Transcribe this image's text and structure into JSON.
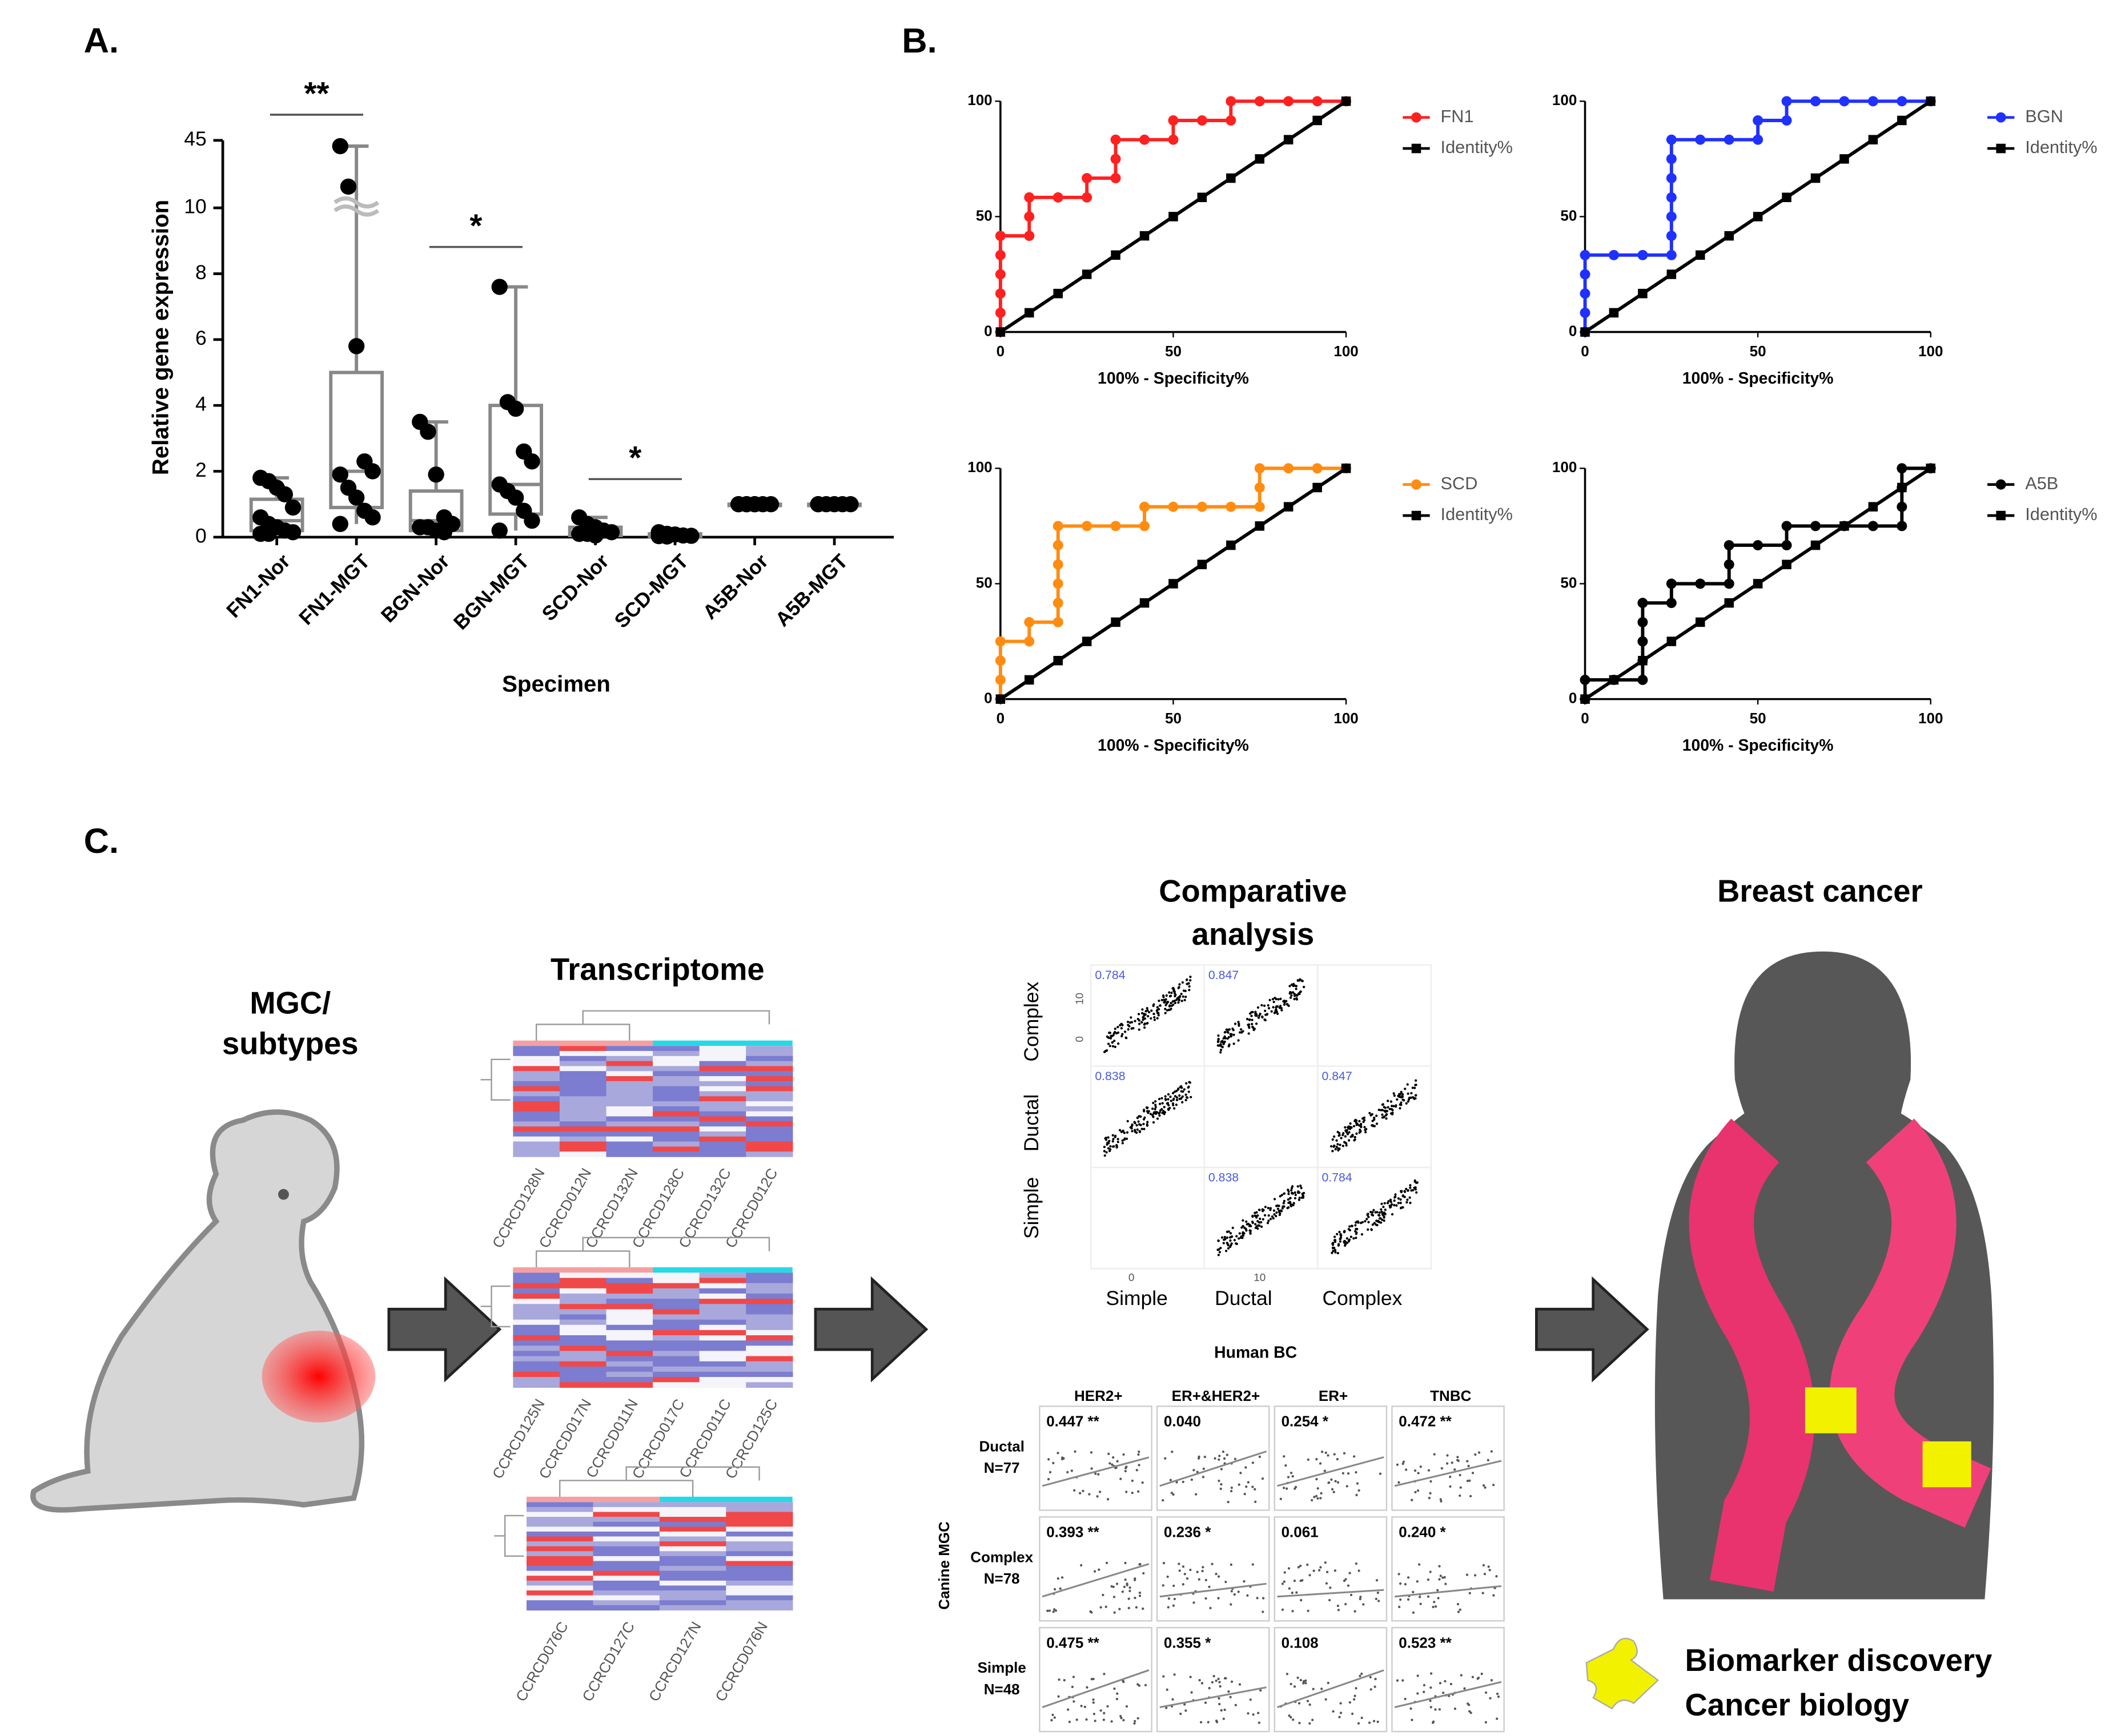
{
  "panel_labels": [
    "A.",
    "B.",
    "C."
  ],
  "chart_data": [
    {
      "type": "box",
      "ylabel": "Relative gene expression",
      "xlabel": "Specimen",
      "categories": [
        "FN1-Nor",
        "FN1-MGT",
        "BGN-Nor",
        "BGN-MGT",
        "SCD-Nor",
        "SCD-MGT",
        "A5B-Nor",
        "A5B-MGT"
      ],
      "ylim": [
        0,
        45
      ],
      "axis_break": 10,
      "yticks": [
        0,
        2,
        4,
        6,
        8,
        10,
        45
      ],
      "color": "#888888",
      "point_color": "#000000",
      "boxes": [
        {
          "min": 0.1,
          "q1": 0.2,
          "median": 0.5,
          "q3": 1.15,
          "max": 1.8,
          "points": [
            1.8,
            1.7,
            1.5,
            1.3,
            0.9,
            0.6,
            0.4,
            0.3,
            0.2,
            0.15,
            0.1,
            0.1
          ]
        },
        {
          "min": 0.4,
          "q1": 0.9,
          "median": 2,
          "q3": 5,
          "max": 42,
          "points": [
            42,
            21,
            5.8,
            2.3,
            2,
            1.9,
            1.5,
            1.2,
            0.8,
            0.6,
            0.4
          ]
        },
        {
          "min": 0.1,
          "q1": 0.2,
          "median": 0.5,
          "q3": 1.4,
          "max": 3.5,
          "points": [
            3.5,
            3.2,
            1.9,
            0.6,
            0.4,
            0.3,
            0.3,
            0.2,
            0.15
          ]
        },
        {
          "min": 0.2,
          "q1": 0.7,
          "median": 1.6,
          "q3": 4,
          "max": 7.6,
          "points": [
            7.6,
            4.1,
            3.9,
            2.6,
            2.3,
            1.6,
            1.4,
            1.2,
            0.8,
            0.5,
            0.2
          ]
        },
        {
          "min": 0.02,
          "q1": 0.05,
          "median": 0.15,
          "q3": 0.3,
          "max": 0.6,
          "points": [
            0.6,
            0.4,
            0.3,
            0.2,
            0.15,
            0.1,
            0.1,
            0.05
          ]
        },
        {
          "min": 0.01,
          "q1": 0.02,
          "median": 0.05,
          "q3": 0.1,
          "max": 0.15,
          "points": [
            0.15,
            0.1,
            0.08,
            0.05,
            0.04,
            0.03,
            0.02
          ]
        },
        {
          "min": 1,
          "q1": 1,
          "median": 1,
          "q3": 1,
          "max": 1,
          "points": [
            1,
            1,
            1,
            1,
            1,
            1,
            1,
            1
          ]
        },
        {
          "min": 1,
          "q1": 1,
          "median": 1,
          "q3": 1,
          "max": 1,
          "points": [
            1,
            1,
            1,
            1,
            1,
            1
          ]
        }
      ],
      "annotations": [
        "**",
        "*",
        "*"
      ]
    },
    {
      "type": "line",
      "xlabel": "100% - Specificity%",
      "xlim": [
        0,
        100
      ],
      "ylim": [
        0,
        100
      ],
      "xticks": [
        0,
        50,
        100
      ],
      "yticks": [
        0,
        50,
        100
      ],
      "series": [
        {
          "name": "FN1",
          "color": "#ff2020",
          "marker": "circle",
          "x": [
            0,
            0,
            0,
            0,
            0,
            0,
            8.33,
            8.33,
            8.33,
            16.67,
            25,
            25,
            33.33,
            33.33,
            33.33,
            41.67,
            50,
            50,
            58.33,
            66.67,
            66.67,
            75,
            83.33,
            91.67,
            100
          ],
          "values": [
            0,
            8.33,
            16.67,
            25,
            33.33,
            41.67,
            41.67,
            50,
            58.33,
            58.33,
            58.33,
            66.67,
            66.67,
            75,
            83.33,
            83.33,
            83.33,
            91.67,
            91.67,
            91.67,
            100,
            100,
            100,
            100,
            100
          ]
        },
        {
          "name": "Identity%",
          "color": "#000000",
          "marker": "square",
          "x": [
            0,
            8.33,
            16.67,
            25,
            33.33,
            41.67,
            50,
            58.33,
            66.67,
            75,
            83.33,
            91.67,
            100
          ],
          "values": [
            0,
            8.33,
            16.67,
            25,
            33.33,
            41.67,
            50,
            58.33,
            66.67,
            75,
            83.33,
            91.67,
            100
          ]
        }
      ]
    },
    {
      "type": "line",
      "xlabel": "100% - Specificity%",
      "xlim": [
        0,
        100
      ],
      "ylim": [
        0,
        100
      ],
      "xticks": [
        0,
        50,
        100
      ],
      "yticks": [
        0,
        50,
        100
      ],
      "series": [
        {
          "name": "BGN",
          "color": "#2030ff",
          "marker": "circle",
          "x": [
            0,
            0,
            0,
            0,
            0,
            8.33,
            16.67,
            25,
            25,
            25,
            25,
            25,
            25,
            25,
            33.33,
            41.67,
            50,
            50,
            58.33,
            58.33,
            66.67,
            75,
            83.33,
            91.67,
            100
          ],
          "values": [
            0,
            8.33,
            16.67,
            25,
            33.33,
            33.33,
            33.33,
            33.33,
            41.67,
            50,
            58.33,
            66.67,
            75,
            83.33,
            83.33,
            83.33,
            83.33,
            91.67,
            91.67,
            100,
            100,
            100,
            100,
            100,
            100
          ]
        },
        {
          "name": "Identity%",
          "color": "#000000",
          "marker": "square",
          "x": [
            0,
            8.33,
            16.67,
            25,
            33.33,
            41.67,
            50,
            58.33,
            66.67,
            75,
            83.33,
            91.67,
            100
          ],
          "values": [
            0,
            8.33,
            16.67,
            25,
            33.33,
            41.67,
            50,
            58.33,
            66.67,
            75,
            83.33,
            91.67,
            100
          ]
        }
      ]
    },
    {
      "type": "line",
      "xlabel": "100% - Specificity%",
      "xlim": [
        0,
        100
      ],
      "ylim": [
        0,
        100
      ],
      "xticks": [
        0,
        50,
        100
      ],
      "yticks": [
        0,
        50,
        100
      ],
      "series": [
        {
          "name": "SCD",
          "color": "#ff8c10",
          "marker": "circle",
          "x": [
            0,
            0,
            0,
            0,
            8.33,
            8.33,
            16.67,
            16.67,
            16.67,
            16.67,
            16.67,
            16.67,
            25,
            33.33,
            41.67,
            41.67,
            50,
            58.33,
            66.67,
            75,
            75,
            75,
            83.33,
            91.67,
            100
          ],
          "values": [
            0,
            8.33,
            16.67,
            25,
            25,
            33.33,
            33.33,
            41.67,
            50,
            58.33,
            66.67,
            75,
            75,
            75,
            75,
            83.33,
            83.33,
            83.33,
            83.33,
            83.33,
            91.67,
            100,
            100,
            100,
            100
          ]
        },
        {
          "name": "Identity%",
          "color": "#000000",
          "marker": "square",
          "x": [
            0,
            8.33,
            16.67,
            25,
            33.33,
            41.67,
            50,
            58.33,
            66.67,
            75,
            83.33,
            91.67,
            100
          ],
          "values": [
            0,
            8.33,
            16.67,
            25,
            33.33,
            41.67,
            50,
            58.33,
            66.67,
            75,
            83.33,
            91.67,
            100
          ]
        }
      ]
    },
    {
      "type": "line",
      "xlabel": "100% - Specificity%",
      "xlim": [
        0,
        100
      ],
      "ylim": [
        0,
        100
      ],
      "xticks": [
        0,
        50,
        100
      ],
      "yticks": [
        0,
        50,
        100
      ],
      "series": [
        {
          "name": "A5B",
          "color": "#000000",
          "marker": "circle",
          "x": [
            0,
            0,
            8.33,
            16.67,
            16.67,
            16.67,
            16.67,
            16.67,
            25,
            25,
            33.33,
            41.67,
            41.67,
            41.67,
            50,
            58.33,
            58.33,
            66.67,
            75,
            83.33,
            91.67,
            91.67,
            91.67,
            91.67,
            100
          ],
          "values": [
            0,
            8.33,
            8.33,
            8.33,
            16.67,
            25,
            33.33,
            41.67,
            41.67,
            50,
            50,
            50,
            58.33,
            66.67,
            66.67,
            66.67,
            75,
            75,
            75,
            75,
            75,
            83.33,
            91.67,
            100,
            100
          ]
        },
        {
          "name": "Identity%",
          "color": "#000000",
          "marker": "square",
          "x": [
            0,
            8.33,
            16.67,
            25,
            33.33,
            41.67,
            50,
            58.33,
            66.67,
            75,
            83.33,
            91.67,
            100
          ],
          "values": [
            0,
            8.33,
            16.67,
            25,
            33.33,
            41.67,
            50,
            58.33,
            66.67,
            75,
            83.33,
            91.67,
            100
          ]
        }
      ]
    }
  ],
  "diagram": {
    "mgc_title": [
      "MGC/",
      "subtypes"
    ],
    "transcriptome": {
      "title": "Transcriptome",
      "samples": [
        [
          "CCRCD128N",
          "CCRCD012N",
          "CCRCD132N",
          "CCRCD128C",
          "CCRCD132C",
          "CCRCD012C"
        ],
        [
          "CCRCD125N",
          "CCRCD017N",
          "CCRCD011N",
          "CCRCD017C",
          "CCRCD011C",
          "CCRCD125C"
        ],
        [
          "CCRCD076C",
          "CCRCD127C",
          "CCRCD127N",
          "CCRCD076N"
        ]
      ]
    },
    "comparative": {
      "title": [
        "Comparative",
        "analysis"
      ],
      "rows": [
        "Complex",
        "Ductal",
        "Simple"
      ],
      "columns": [
        "Simple",
        "Ductal",
        "Complex"
      ],
      "axis_ticks": [
        0,
        10
      ],
      "correlations": [
        [
          0.784,
          0.847,
          null
        ],
        [
          0.838,
          null,
          0.847
        ],
        [
          null,
          0.838,
          0.784
        ]
      ]
    },
    "human_bc": {
      "title": "Human BC",
      "side_label": "Canine MGC",
      "columns": [
        "HER2+",
        "ER+&HER2+",
        "ER+",
        "TNBC"
      ],
      "rows": [
        {
          "name": "Ductal",
          "n": "N=77"
        },
        {
          "name": "Complex",
          "n": "N=78"
        },
        {
          "name": "Simple",
          "n": "N=48"
        }
      ],
      "cells": [
        [
          "0.447 **",
          "0.040",
          "0.254 *",
          "0.472 **"
        ],
        [
          "0.393 **",
          "0.236 *",
          "0.061",
          "0.240 *"
        ],
        [
          "0.475 **",
          "0.355 *",
          "0.108",
          "0.523 **"
        ]
      ]
    },
    "breast_cancer": {
      "title": "Breast cancer",
      "legend": [
        "Biomarker discovery",
        "Cancer biology"
      ]
    }
  }
}
